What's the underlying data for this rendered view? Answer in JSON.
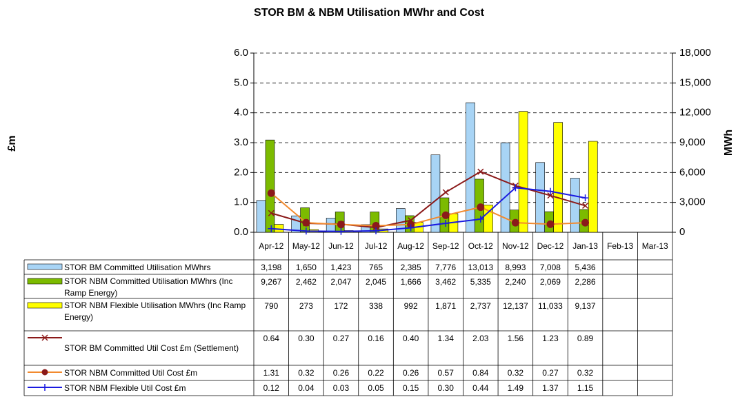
{
  "chart_data": {
    "type": "bar",
    "title": "STOR BM & NBM Utilisation MWhr and Cost",
    "ylabel": "£m",
    "y2label": "MWh",
    "categories": [
      "Apr-12",
      "May-12",
      "Jun-12",
      "Jul-12",
      "Aug-12",
      "Sep-12",
      "Oct-12",
      "Nov-12",
      "Dec-12",
      "Jan-13",
      "Feb-13",
      "Mar-13"
    ],
    "ylim": [
      0,
      6
    ],
    "yticks": [
      {
        "value": 0,
        "label": "0.0"
      },
      {
        "value": 1,
        "label": "1.0"
      },
      {
        "value": 2,
        "label": "2.0"
      },
      {
        "value": 3,
        "label": "3.0"
      },
      {
        "value": 4,
        "label": "4.0"
      },
      {
        "value": 5,
        "label": "5.0"
      },
      {
        "value": 6,
        "label": "6.0"
      }
    ],
    "y2lim": [
      0,
      18000
    ],
    "y2ticks": [
      0,
      {
        "value": 3000,
        "label": "3,000"
      },
      {
        "value": 6000,
        "label": "6,000"
      },
      {
        "value": 9000,
        "label": "9,000"
      },
      {
        "value": 12000,
        "label": "12,000"
      },
      {
        "value": 15000,
        "label": "15,000"
      },
      {
        "value": 18000,
        "label": "18,000"
      }
    ],
    "grid": true,
    "series": [
      {
        "name": "STOR BM Committed Utilisation MWhrs",
        "type": "bar",
        "axis": "y2",
        "color": "#a8d4f5",
        "values": [
          3198,
          1650,
          1423,
          765,
          2385,
          7776,
          13013,
          8993,
          7008,
          5436,
          null,
          null
        ],
        "value_labels": [
          "3,198",
          "1,650",
          "1,423",
          "765",
          "2,385",
          "7,776",
          "13,013",
          "8,993",
          "7,008",
          "5,436",
          null,
          null
        ]
      },
      {
        "name": "STOR NBM Committed Utilisation MWhrs (Inc Ramp Energy)",
        "type": "bar",
        "axis": "y2",
        "color": "#7cbb00",
        "values": [
          9267,
          2462,
          2047,
          2045,
          1666,
          3462,
          5335,
          2240,
          2069,
          2286,
          null,
          null
        ],
        "value_labels": [
          "9,267",
          "2,462",
          "2,047",
          "2,045",
          "1,666",
          "3,462",
          "5,335",
          "2,240",
          "2,069",
          "2,286",
          null,
          null
        ]
      },
      {
        "name": "STOR NBM Flexible Utilisation MWhrs (Inc Ramp Energy)",
        "type": "bar",
        "axis": "y2",
        "color": "#ffff00",
        "values": [
          790,
          273,
          172,
          338,
          992,
          1871,
          2737,
          12137,
          11033,
          9137,
          null,
          null
        ],
        "value_labels": [
          "790",
          "273",
          "172",
          "338",
          "992",
          "1,871",
          "2,737",
          "12,137",
          "11,033",
          "9,137",
          null,
          null
        ]
      },
      {
        "name": "STOR BM Committed Util Cost £m (Settlement)",
        "type": "line",
        "marker": "x",
        "color": "#8b1a1a",
        "values": [
          0.64,
          0.3,
          0.27,
          0.16,
          0.4,
          1.34,
          2.03,
          1.56,
          1.23,
          0.89,
          null,
          null
        ],
        "value_labels": [
          "0.64",
          "0.30",
          "0.27",
          "0.16",
          "0.40",
          "1.34",
          "2.03",
          "1.56",
          "1.23",
          "0.89",
          null,
          null
        ]
      },
      {
        "name": "STOR NBM Committed Util Cost £m",
        "type": "line",
        "marker": "circle",
        "color": "#f28a2e",
        "values": [
          1.31,
          0.32,
          0.26,
          0.22,
          0.26,
          0.57,
          0.84,
          0.32,
          0.27,
          0.32,
          null,
          null
        ],
        "value_labels": [
          "1.31",
          "0.32",
          "0.26",
          "0.22",
          "0.26",
          "0.57",
          "0.84",
          "0.32",
          "0.27",
          "0.32",
          null,
          null
        ]
      },
      {
        "name": "STOR NBM Flexible Util Cost £m",
        "type": "line",
        "marker": "plus",
        "color": "#1a1ae0",
        "values": [
          0.12,
          0.04,
          0.03,
          0.05,
          0.15,
          0.3,
          0.44,
          1.49,
          1.37,
          1.15,
          null,
          null
        ],
        "value_labels": [
          "0.12",
          "0.04",
          "0.03",
          "0.05",
          "0.15",
          "0.30",
          "0.44",
          "1.49",
          "1.37",
          "1.15",
          null,
          null
        ]
      }
    ]
  }
}
